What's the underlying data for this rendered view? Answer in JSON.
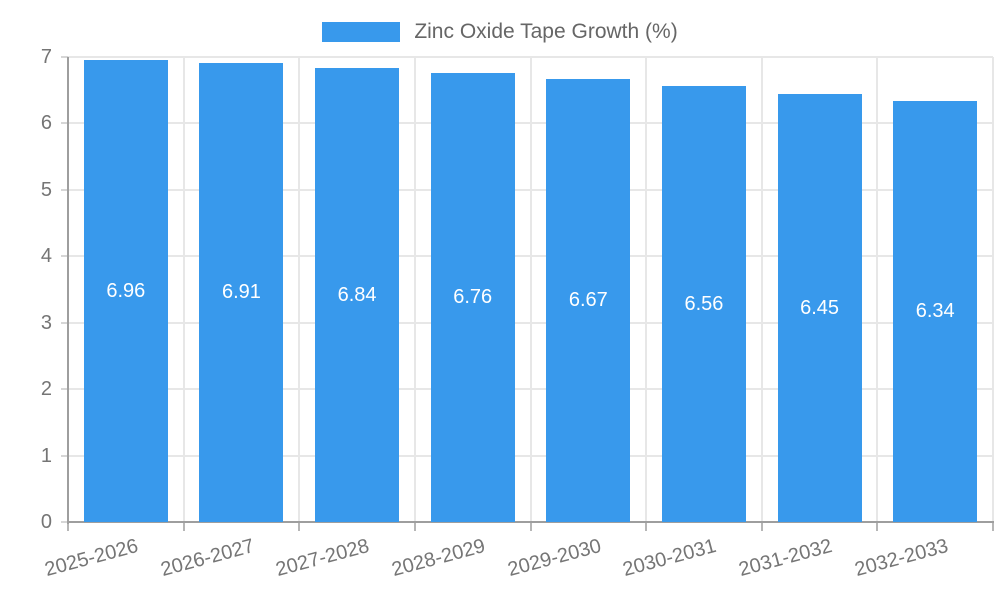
{
  "chart_data": {
    "type": "bar",
    "title": "Zinc Oxide Tape Growth (%)",
    "legend": {
      "label": "Zinc Oxide Tape Growth (%)",
      "position": "top"
    },
    "categories": [
      "2025-2026",
      "2026-2027",
      "2027-2028",
      "2028-2029",
      "2029-2030",
      "2030-2031",
      "2031-2032",
      "2032-2033"
    ],
    "values": [
      6.96,
      6.91,
      6.84,
      6.76,
      6.67,
      6.56,
      6.45,
      6.34
    ],
    "value_labels": [
      "6.96",
      "6.91",
      "6.84",
      "6.76",
      "6.67",
      "6.56",
      "6.45",
      "6.34"
    ],
    "xlabel": "",
    "ylabel": "",
    "ylim": [
      0,
      7
    ],
    "yticks": [
      0,
      1,
      2,
      3,
      4,
      5,
      6,
      7
    ],
    "grid": true,
    "x_tick_rotation_deg": -15,
    "colors": {
      "bar": "#3899ec",
      "value_label": "#ffffff",
      "grid_line": "#e7e7e7",
      "minor_tick": "#d6d6d6",
      "axis_tick": "#b6b6b6",
      "axis_line": "#9e9e9e",
      "tick_text": "#757575",
      "legend_text": "#666666",
      "background": "#ffffff"
    }
  }
}
